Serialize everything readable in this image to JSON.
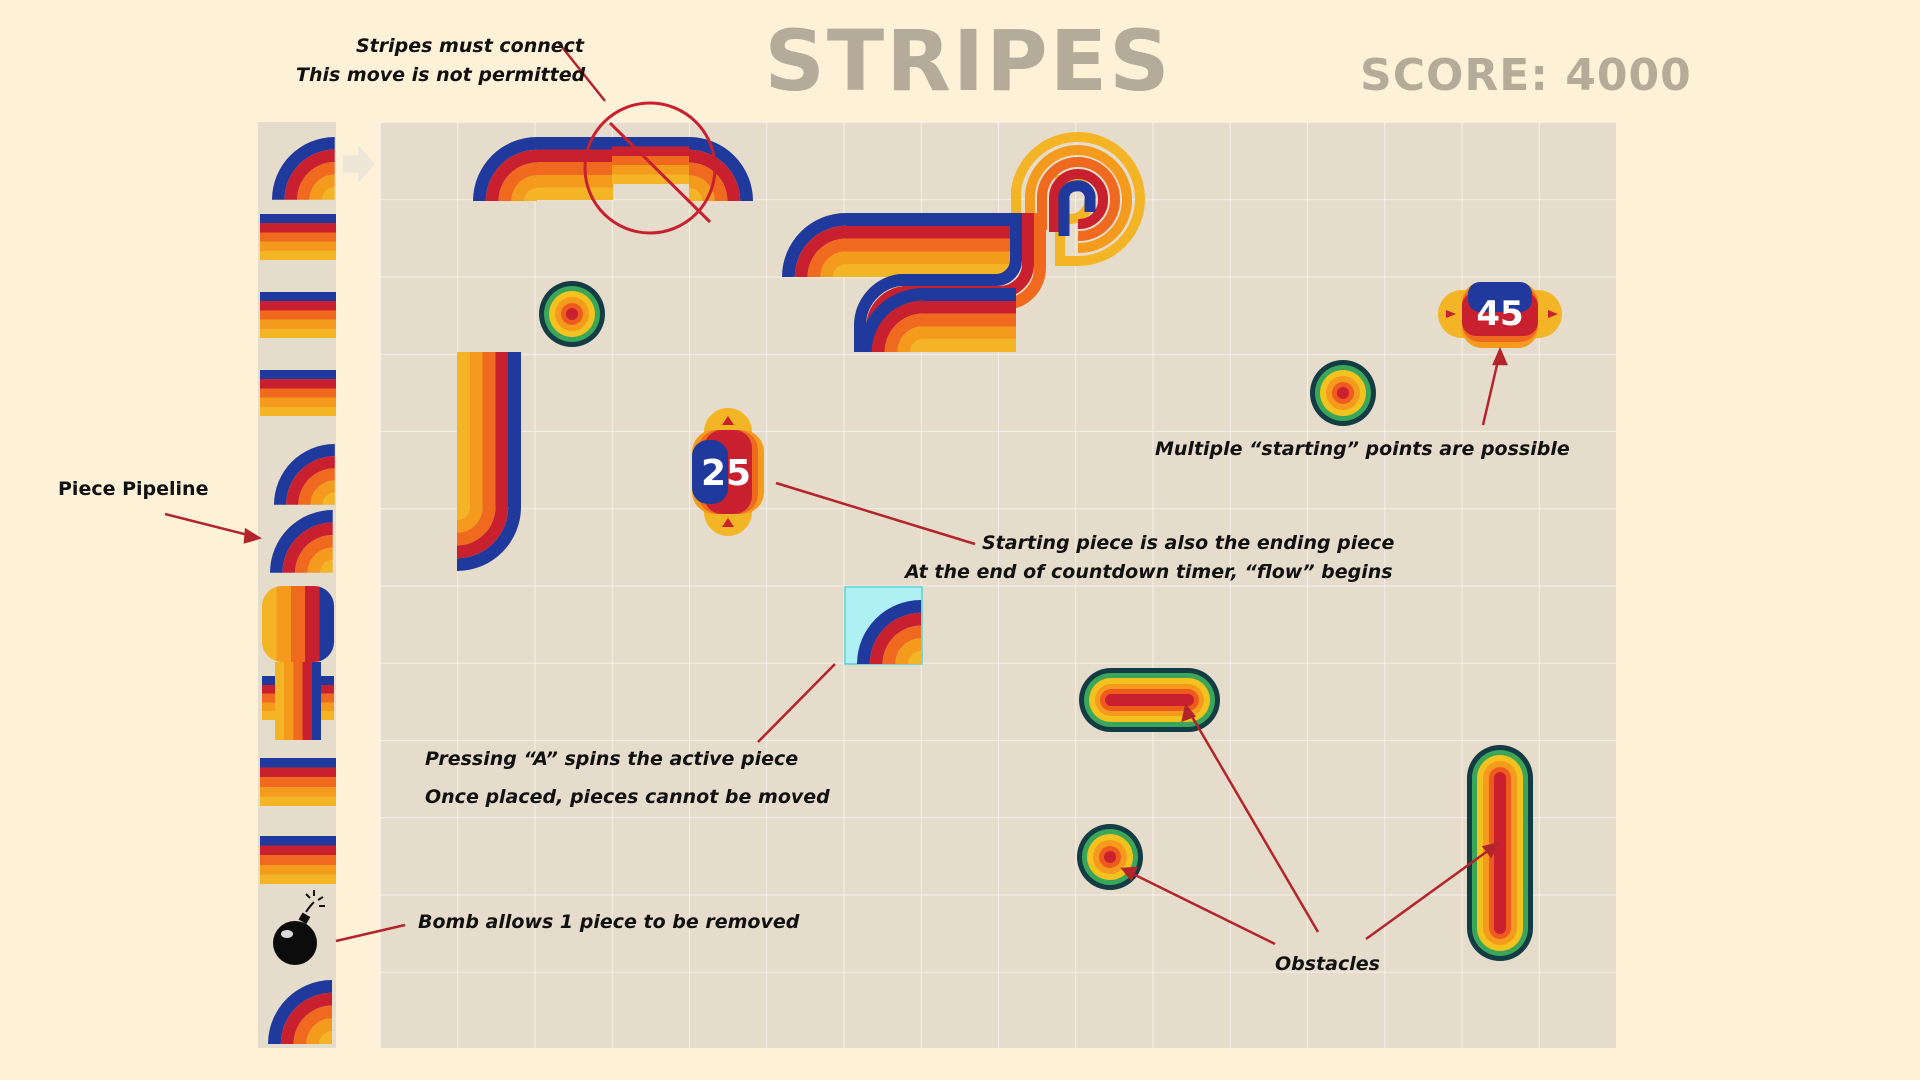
{
  "title": "STRIPES",
  "score": "SCORE: 4000",
  "timers": {
    "start_a": "25",
    "start_b": "45"
  },
  "annotations": {
    "connect_1": "Stripes must connect",
    "connect_2": "This move is not permitted",
    "pipeline": "Piece Pipeline",
    "ending_1": "Starting piece is also the ending piece",
    "ending_2": "At the end of countdown timer, “flow” begins",
    "multiple": "Multiple “starting” points are possible",
    "spin": "Pressing “A” spins the active piece",
    "placed": "Once placed, pieces cannot be moved",
    "bomb": "Bomb allows 1 piece to be removed",
    "obstacles": "Obstacles"
  },
  "colors": {
    "background": "#fdf1d8",
    "board": "#e6dccb",
    "title": "#b5ab99",
    "stripe_blue": "#1f3a9c",
    "stripe_red": "#c8202e",
    "stripe_orange": "#ef6a1f",
    "stripe_amber": "#f49b1e",
    "stripe_yellow": "#f3b526",
    "annotation_line": "#b3242b",
    "active_highlight": "#aef0f3"
  },
  "icons": {
    "next_arrow": "arrow-right-icon",
    "bomb": "bomb-icon",
    "no_entry": "prohibited-icon"
  }
}
